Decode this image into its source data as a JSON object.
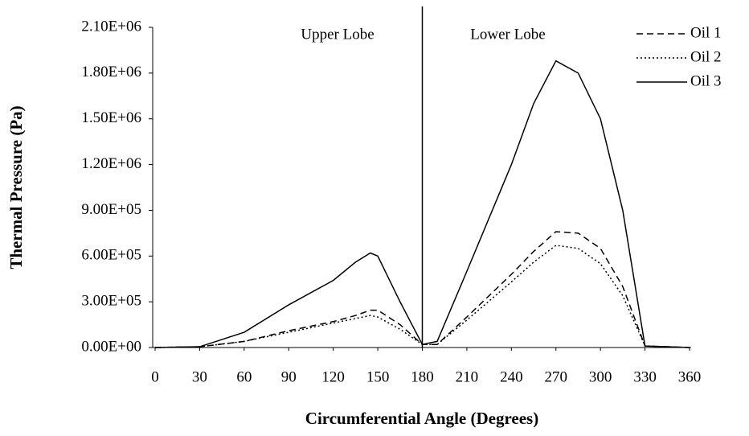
{
  "chart_data": {
    "type": "line",
    "x_label": "Circumferential Angle (Degrees)",
    "y_label": "Thermal Pressure (Pa)",
    "annotations": [
      "Upper Lobe",
      "Lower Lobe"
    ],
    "vline": 180,
    "x": [
      0,
      30,
      60,
      90,
      120,
      135,
      145,
      150,
      165,
      180,
      190,
      210,
      240,
      255,
      270,
      285,
      300,
      315,
      330,
      360
    ],
    "series": [
      {
        "name": "Oil 1",
        "color": "#000000",
        "dash": "dashed",
        "values": [
          0,
          5000,
          40000,
          110000,
          170000,
          210000,
          245000,
          245000,
          150000,
          20000,
          20000,
          200000,
          480000,
          630000,
          760000,
          750000,
          650000,
          400000,
          10000,
          0
        ]
      },
      {
        "name": "Oil 2",
        "color": "#000000",
        "dash": "dotted",
        "values": [
          0,
          5000,
          40000,
          100000,
          160000,
          190000,
          210000,
          200000,
          120000,
          20000,
          20000,
          180000,
          430000,
          560000,
          670000,
          650000,
          550000,
          340000,
          10000,
          0
        ]
      },
      {
        "name": "Oil 3",
        "color": "#000000",
        "dash": "solid",
        "values": [
          0,
          5000,
          100000,
          280000,
          440000,
          560000,
          620000,
          600000,
          300000,
          20000,
          40000,
          500000,
          1200000,
          1600000,
          1880000,
          1800000,
          1500000,
          900000,
          10000,
          0
        ]
      }
    ],
    "xlim": [
      0,
      360
    ],
    "xticks": [
      0,
      30,
      60,
      90,
      120,
      150,
      180,
      210,
      240,
      270,
      300,
      330,
      360
    ],
    "ylim": [
      0,
      2100000
    ],
    "yticks": [
      {
        "value": 0,
        "label": "0.00E+00"
      },
      {
        "value": 300000,
        "label": "3.00E+05"
      },
      {
        "value": 600000,
        "label": "6.00E+05"
      },
      {
        "value": 900000,
        "label": "9.00E+05"
      },
      {
        "value": 1200000,
        "label": "1.20E+06"
      },
      {
        "value": 1500000,
        "label": "1.50E+06"
      },
      {
        "value": 1800000,
        "label": "1.80E+06"
      },
      {
        "value": 2100000,
        "label": "2.10E+06"
      }
    ],
    "legend": "top-right",
    "grid": false
  }
}
